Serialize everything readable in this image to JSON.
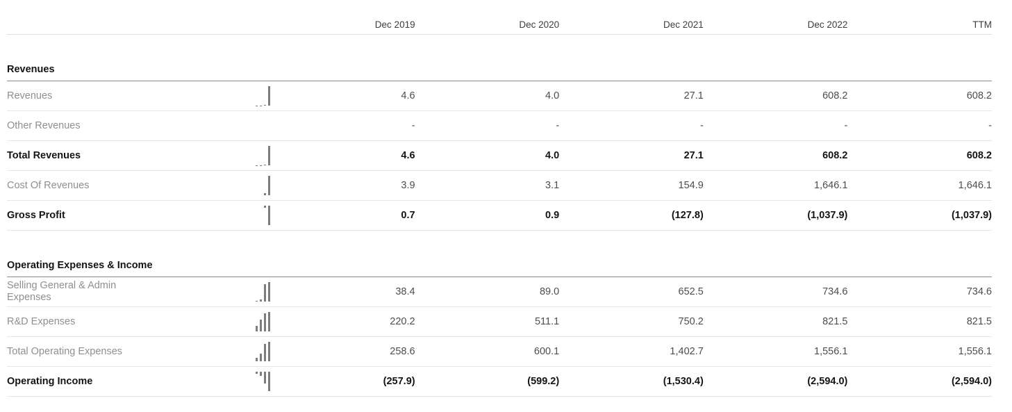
{
  "columns": [
    "Dec 2019",
    "Dec 2020",
    "Dec 2021",
    "Dec 2022",
    "TTM"
  ],
  "colors": {
    "bold_text": "#141414",
    "label_text": "#8f8f8f",
    "value_text": "#4d4d4d",
    "header_text": "#3d3d3d",
    "section_rule": "#8a8a8a",
    "row_rule": "#e6e6e6",
    "spark_bar": "#7d7d7d"
  },
  "sections": [
    {
      "title": "Revenues",
      "rows": [
        {
          "label": "Revenues",
          "bold": false,
          "sparkline": [
            4.6,
            4.0,
            27.1,
            608.2
          ],
          "values": [
            "4.6",
            "4.0",
            "27.1",
            "608.2",
            "608.2"
          ]
        },
        {
          "label": "Other Revenues",
          "bold": false,
          "sparkline": [],
          "values": [
            "-",
            "-",
            "-",
            "-",
            "-"
          ]
        },
        {
          "label": "Total Revenues",
          "bold": true,
          "sparkline": [
            4.6,
            4.0,
            27.1,
            608.2
          ],
          "values": [
            "4.6",
            "4.0",
            "27.1",
            "608.2",
            "608.2"
          ]
        },
        {
          "label": "Cost Of Revenues",
          "bold": false,
          "sparkline": [
            3.9,
            3.1,
            154.9,
            1646.1
          ],
          "values": [
            "3.9",
            "3.1",
            "154.9",
            "1,646.1",
            "1,646.1"
          ]
        },
        {
          "label": "Gross Profit",
          "bold": true,
          "sparkline": [
            0.7,
            0.9,
            -127.8,
            -1037.9
          ],
          "values": [
            "0.7",
            "0.9",
            "(127.8)",
            "(1,037.9)",
            "(1,037.9)"
          ]
        }
      ]
    },
    {
      "title": "Operating Expenses & Income",
      "rows": [
        {
          "label": "Selling General & Admin Expenses",
          "bold": false,
          "sparkline": [
            38.4,
            89.0,
            652.5,
            734.6
          ],
          "values": [
            "38.4",
            "89.0",
            "652.5",
            "734.6",
            "734.6"
          ]
        },
        {
          "label": "R&D Expenses",
          "bold": false,
          "sparkline": [
            220.2,
            511.1,
            750.2,
            821.5
          ],
          "values": [
            "220.2",
            "511.1",
            "750.2",
            "821.5",
            "821.5"
          ]
        },
        {
          "label": "Total Operating Expenses",
          "bold": false,
          "sparkline": [
            258.6,
            600.1,
            1402.7,
            1556.1
          ],
          "values": [
            "258.6",
            "600.1",
            "1,402.7",
            "1,556.1",
            "1,556.1"
          ]
        },
        {
          "label": "Operating Income",
          "bold": true,
          "sparkline": [
            -257.9,
            -599.2,
            -1530.4,
            -2594.0
          ],
          "values": [
            "(257.9)",
            "(599.2)",
            "(1,530.4)",
            "(2,594.0)",
            "(2,594.0)"
          ]
        }
      ]
    }
  ]
}
